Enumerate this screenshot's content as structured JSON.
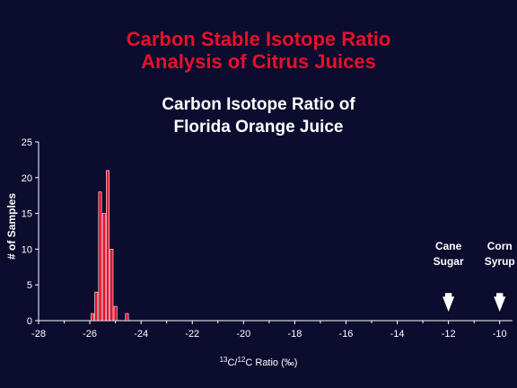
{
  "header": {
    "title_line1": "Carbon Stable Isotope Ratio",
    "title_line2": "Analysis of Citrus Juices",
    "subtitle_line1": "Carbon Isotope Ratio of",
    "subtitle_line2": "Florida Orange Juice"
  },
  "colors": {
    "background": "#0b0c2e",
    "title": "#e8102a",
    "bar_fill": "#e8102a",
    "bar_stroke": "#ffffff",
    "axis": "#ffffff",
    "arrow": "#ffffff"
  },
  "chart_data": {
    "type": "bar",
    "title": "Carbon Isotope Ratio of Florida Orange Juice",
    "xlabel": "13C/12C Ratio (‰)",
    "ylabel": "# of Samples",
    "xlim": [
      -28,
      -9.5
    ],
    "ylim": [
      0,
      25
    ],
    "x_ticks": [
      -28,
      -26,
      -24,
      -22,
      -20,
      -18,
      -16,
      -14,
      -12,
      -10
    ],
    "y_ticks": [
      0,
      5,
      10,
      15,
      20,
      25
    ],
    "bin_width": 0.15,
    "x": [
      -25.9,
      -25.75,
      -25.6,
      -25.45,
      -25.3,
      -25.15,
      -25.0,
      -24.85,
      -24.7,
      -24.55
    ],
    "values": [
      1,
      4,
      18,
      15,
      21,
      10,
      2,
      0,
      0,
      1
    ],
    "annotations": [
      {
        "line1": "Cane",
        "line2": "Sugar",
        "x": -12
      },
      {
        "line1": "Corn",
        "line2": "Syrup",
        "x": -10
      }
    ],
    "grid": false,
    "legend": "none"
  }
}
